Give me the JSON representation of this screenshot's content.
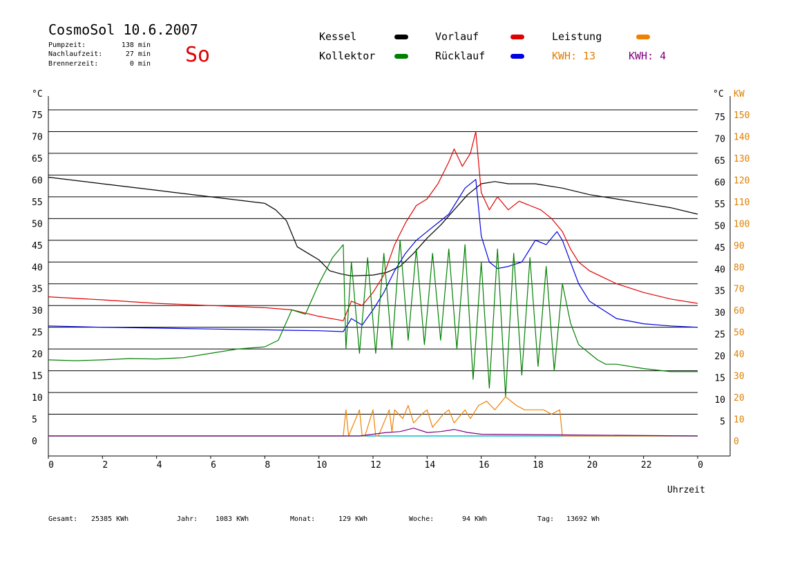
{
  "header": {
    "title": "CosmoSol 10.6.2007",
    "day": "So",
    "stats": [
      {
        "label": "Pumpzeit:",
        "value": "138 min"
      },
      {
        "label": "Nachlaufzeit:",
        "value": "27 min"
      },
      {
        "label": "Brennerzeit:",
        "value": "0 min"
      }
    ]
  },
  "legend": {
    "items": [
      {
        "label": "Kessel",
        "color": "#000000"
      },
      {
        "label": "Vorlauf",
        "color": "#e00000"
      },
      {
        "label": "Leistung",
        "color": "#f08000"
      },
      {
        "label": "Kollektor",
        "color": "#008000"
      },
      {
        "label": "Rücklauf",
        "color": "#0000e0"
      }
    ],
    "kwh": [
      {
        "label": "KWH: 13",
        "color": "#e08000"
      },
      {
        "label": "KWH: 4",
        "color": "#800080"
      }
    ]
  },
  "footer": [
    {
      "label": "Gesamt:",
      "value": "25385 KWh"
    },
    {
      "label": "Jahr:",
      "value": "1083 KWh"
    },
    {
      "label": "Monat:",
      "value": "129 KWh"
    },
    {
      "label": "Woche:",
      "value": "94 KWh"
    },
    {
      "label": "Tag:",
      "value": "13692 Wh"
    }
  ],
  "chart_data": {
    "type": "line",
    "xlabel": "Uhrzeit",
    "ylabel_left": "°C",
    "ylabel_right_temp": "°C",
    "ylabel_right_power": "KW",
    "xlim": [
      0,
      24
    ],
    "ylim": [
      0,
      75
    ],
    "y2lim": [
      0,
      150
    ],
    "x_ticks": [
      "0",
      "2",
      "4",
      "6",
      "8",
      "10",
      "12",
      "14",
      "16",
      "18",
      "20",
      "22",
      "0"
    ],
    "y_ticks": [
      0,
      5,
      10,
      15,
      20,
      25,
      30,
      35,
      40,
      45,
      50,
      55,
      60,
      65,
      70,
      75
    ],
    "y_ticks_right_temp": [
      5,
      10,
      15,
      20,
      25,
      30,
      35,
      40,
      45,
      50,
      55,
      60,
      65,
      70,
      75
    ],
    "y_ticks_right_power": [
      0,
      10,
      20,
      30,
      40,
      50,
      60,
      70,
      80,
      90,
      100,
      110,
      120,
      130,
      140,
      150
    ],
    "grid": true,
    "series": [
      {
        "name": "Kessel",
        "color": "#000000",
        "x": [
          0,
          2,
          4,
          6,
          8,
          8.4,
          8.8,
          9.0,
          9.2,
          9.6,
          10.0,
          10.4,
          10.8,
          11.2,
          12.0,
          12.5,
          13.0,
          13.5,
          14.0,
          14.5,
          15.0,
          15.5,
          16.0,
          16.5,
          17.0,
          18.0,
          19.0,
          20.0,
          21.0,
          22.0,
          23.0,
          24.0
        ],
        "y": [
          59.5,
          58,
          56.5,
          55,
          53.5,
          52,
          49.5,
          46.5,
          43.5,
          42,
          40.5,
          38,
          37.3,
          36.8,
          37,
          37.6,
          39,
          42,
          45.5,
          48.5,
          52,
          55.5,
          58,
          58.5,
          58,
          58,
          57,
          55.5,
          54.5,
          53.5,
          52.5,
          51
        ]
      },
      {
        "name": "Vorlauf",
        "color": "#e00000",
        "x": [
          0,
          2,
          4,
          6,
          8,
          9,
          10,
          10.9,
          11.2,
          11.6,
          12.0,
          12.4,
          12.8,
          13.2,
          13.6,
          14.0,
          14.4,
          14.8,
          15.0,
          15.3,
          15.6,
          15.8,
          16.0,
          16.3,
          16.6,
          17.0,
          17.4,
          17.8,
          18.2,
          18.6,
          19.0,
          19.3,
          19.6,
          20.0,
          20.5,
          21.0,
          22.0,
          23.0,
          24.0
        ],
        "y": [
          32,
          31.3,
          30.5,
          30,
          29.5,
          29,
          27.5,
          26.5,
          31,
          30,
          33,
          37,
          44,
          49,
          53,
          54.5,
          58,
          63,
          66,
          62,
          65,
          70,
          56,
          52,
          55,
          52,
          54,
          53,
          52,
          50,
          47,
          43,
          40,
          38,
          36.5,
          35,
          33,
          31.5,
          30.5
        ]
      },
      {
        "name": "Rücklauf",
        "color": "#0000e0",
        "x": [
          0,
          2,
          4,
          6,
          8,
          9,
          10,
          10.9,
          11.2,
          11.6,
          12.0,
          12.4,
          12.8,
          13.2,
          13.6,
          14.0,
          14.4,
          14.8,
          15.0,
          15.4,
          15.8,
          16.0,
          16.3,
          16.6,
          17.0,
          17.5,
          18.0,
          18.4,
          18.8,
          19.0,
          19.3,
          19.6,
          20.0,
          20.5,
          21.0,
          22.0,
          23.0,
          24.0
        ],
        "y": [
          25.3,
          25,
          24.8,
          24.6,
          24.4,
          24.3,
          24.2,
          24,
          27,
          25.5,
          29,
          33,
          38,
          42,
          45,
          47,
          49,
          51,
          53,
          57,
          59,
          46,
          40,
          38.5,
          39,
          40,
          45,
          44,
          47,
          45,
          40,
          35,
          31,
          29,
          27,
          25.8,
          25.3,
          25
        ]
      },
      {
        "name": "Kollektor",
        "color": "#008000",
        "x": [
          0,
          1,
          2,
          3,
          4,
          5,
          6,
          7,
          8,
          8.5,
          9.0,
          9.5,
          10.0,
          10.5,
          10.9,
          11.0,
          11.2,
          11.5,
          11.8,
          12.1,
          12.4,
          12.7,
          13.0,
          13.3,
          13.6,
          13.9,
          14.2,
          14.5,
          14.8,
          15.1,
          15.4,
          15.7,
          16.0,
          16.3,
          16.6,
          16.9,
          17.2,
          17.5,
          17.8,
          18.1,
          18.4,
          18.7,
          19.0,
          19.3,
          19.6,
          20.0,
          20.3,
          20.6,
          21.0,
          22.0,
          23.0,
          24.0
        ],
        "y": [
          17.5,
          17.3,
          17.5,
          17.8,
          17.7,
          18,
          19,
          20,
          20.5,
          22,
          29,
          28,
          35,
          41,
          44,
          20,
          40,
          19,
          41,
          19,
          42,
          20,
          45,
          22,
          43,
          21,
          42,
          22,
          43,
          20,
          44,
          13,
          40,
          11,
          43,
          9,
          42,
          14,
          41,
          16,
          39,
          15,
          35,
          26,
          21,
          19,
          17.5,
          16.5,
          16.5,
          15.5,
          14.8,
          14.8
        ]
      },
      {
        "name": "Leistung",
        "color": "#f08000",
        "x": [
          0,
          10.9,
          11.0,
          11.1,
          11.5,
          11.6,
          11.7,
          12.0,
          12.1,
          12.2,
          12.6,
          12.7,
          12.8,
          13.1,
          13.3,
          13.5,
          13.8,
          14.0,
          14.2,
          14.6,
          14.8,
          15.0,
          15.4,
          15.6,
          15.9,
          16.2,
          16.5,
          16.9,
          17.3,
          17.6,
          17.9,
          18.3,
          18.6,
          18.9,
          19.0,
          24.0
        ],
        "y": [
          0,
          0,
          6,
          0,
          6,
          0,
          0,
          6,
          0,
          0,
          6,
          1,
          6,
          4,
          7,
          3,
          5,
          6,
          2,
          5,
          6,
          3,
          6,
          4,
          7,
          8,
          6,
          9,
          7,
          6,
          6,
          6,
          5,
          6,
          0,
          0
        ]
      },
      {
        "name": "Leistung (KWH: 4)",
        "color": "#800080",
        "x": [
          0,
          11.5,
          12.0,
          12.5,
          13.0,
          13.5,
          14.0,
          14.5,
          15.0,
          15.5,
          16.0,
          24.0
        ],
        "y": [
          0,
          0,
          0.4,
          0.8,
          1.0,
          1.8,
          0.8,
          1.0,
          1.5,
          0.8,
          0.4,
          0
        ]
      }
    ],
    "baseline_color": "#00c0c0"
  }
}
